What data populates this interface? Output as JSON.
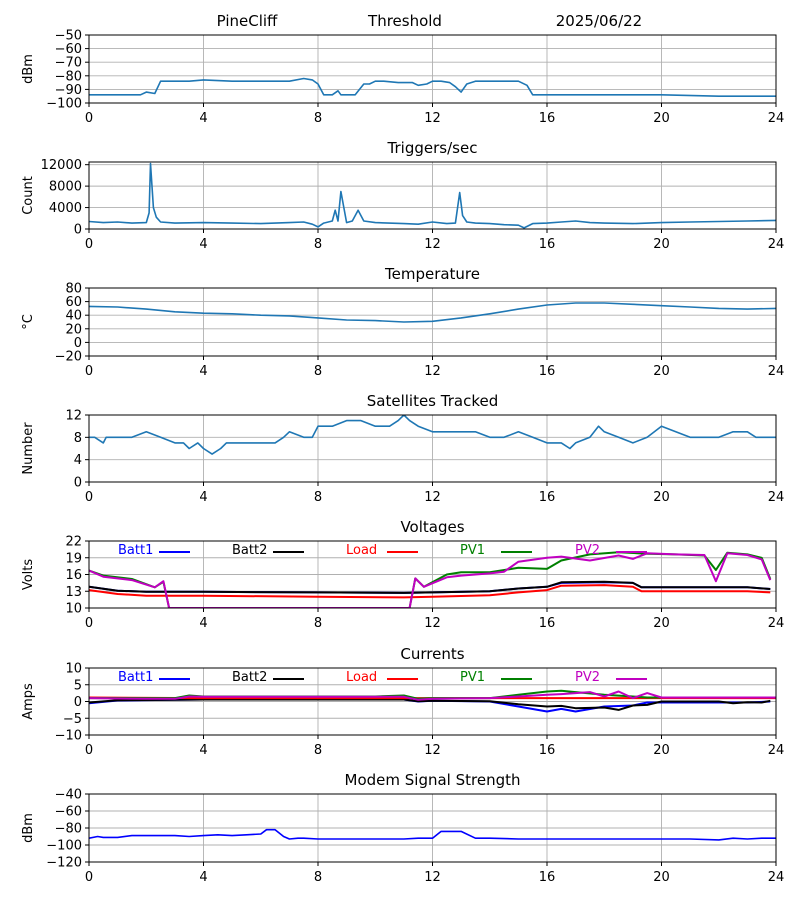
{
  "header": {
    "station": "PineCliff",
    "mode": "Threshold",
    "date": "2025/06/22"
  },
  "colors": {
    "series_default": "#1f77b4",
    "grid": "#b0b0b0",
    "batt1": "#0000ff",
    "batt2": "#000000",
    "load": "#ff0000",
    "pv1": "#008000",
    "pv2": "#c000c0",
    "modem": "#0000ff"
  },
  "chart_data": [
    {
      "type": "line",
      "title": "",
      "ylabel": "dBm",
      "ylim": [
        -100,
        -50
      ],
      "yticks": [
        -50,
        -60,
        -70,
        -80,
        -90,
        -100
      ],
      "xlim": [
        0,
        24
      ],
      "xticks": [
        0,
        4,
        8,
        12,
        16,
        20,
        24
      ],
      "series": [
        {
          "color": "#1f77b4",
          "x": [
            0,
            1.8,
            2.0,
            2.3,
            2.5,
            3.5,
            4,
            5,
            6,
            7,
            7.5,
            7.8,
            8.0,
            8.2,
            8.5,
            8.7,
            8.8,
            9.0,
            9.3,
            9.6,
            9.8,
            10.0,
            10.3,
            10.8,
            11.3,
            11.5,
            11.8,
            12.0,
            12.3,
            12.6,
            12.8,
            13.0,
            13.2,
            13.5,
            14.0,
            14.5,
            15.0,
            15.3,
            15.5,
            16,
            18,
            20,
            22,
            24
          ],
          "y": [
            -94,
            -94,
            -92,
            -93,
            -84,
            -84,
            -83,
            -84,
            -84,
            -84,
            -82,
            -83,
            -86,
            -94,
            -94,
            -91,
            -94,
            -94,
            -94,
            -86,
            -86,
            -84,
            -84,
            -85,
            -85,
            -87,
            -86,
            -84,
            -84,
            -85,
            -88,
            -92,
            -86,
            -84,
            -84,
            -84,
            -84,
            -87,
            -94,
            -94,
            -94,
            -94,
            -95,
            -95
          ]
        }
      ]
    },
    {
      "type": "line",
      "title": "Triggers/sec",
      "ylabel": "Count",
      "ylim": [
        0,
        12500
      ],
      "yticks": [
        0,
        4000,
        8000,
        12000
      ],
      "xlim": [
        0,
        24
      ],
      "xticks": [
        0,
        4,
        8,
        12,
        16,
        20,
        24
      ],
      "series": [
        {
          "color": "#1f77b4",
          "x": [
            0,
            0.5,
            1,
            1.5,
            2.0,
            2.1,
            2.15,
            2.25,
            2.35,
            2.5,
            3,
            4,
            5,
            6,
            7,
            7.5,
            7.8,
            8.0,
            8.2,
            8.5,
            8.6,
            8.7,
            8.8,
            9.0,
            9.2,
            9.4,
            9.6,
            10,
            11,
            11.5,
            12,
            12.5,
            12.8,
            12.95,
            13.05,
            13.2,
            13.5,
            14,
            14.5,
            15,
            15.2,
            15.5,
            16,
            16.5,
            17,
            17.5,
            18,
            19,
            20,
            21,
            22,
            23,
            24
          ],
          "y": [
            1400,
            1200,
            1300,
            1100,
            1200,
            3000,
            12200,
            4000,
            2200,
            1300,
            1100,
            1200,
            1100,
            1000,
            1200,
            1300,
            900,
            400,
            1100,
            1500,
            3500,
            1500,
            7000,
            1200,
            1500,
            3500,
            1500,
            1200,
            1000,
            900,
            1300,
            1000,
            1100,
            6800,
            2500,
            1300,
            1100,
            1000,
            800,
            700,
            200,
            1000,
            1100,
            1300,
            1500,
            1200,
            1100,
            1000,
            1200,
            1300,
            1400,
            1500,
            1600
          ]
        }
      ]
    },
    {
      "type": "line",
      "title": "Temperature",
      "ylabel": "°C",
      "ylim": [
        -20,
        80
      ],
      "yticks": [
        -20,
        0,
        20,
        40,
        60,
        80
      ],
      "xlim": [
        0,
        24
      ],
      "xticks": [
        0,
        4,
        8,
        12,
        16,
        20,
        24
      ],
      "series": [
        {
          "color": "#1f77b4",
          "x": [
            0,
            1,
            2,
            3,
            4,
            5,
            6,
            7,
            8,
            9,
            10,
            11,
            12,
            13,
            14,
            15,
            16,
            17,
            18,
            19,
            20,
            21,
            22,
            23,
            24
          ],
          "y": [
            53,
            52,
            49,
            45,
            43,
            42,
            40,
            39,
            36,
            33,
            32,
            30,
            31,
            36,
            42,
            49,
            55,
            58,
            58,
            56,
            54,
            52,
            50,
            49,
            50
          ]
        }
      ]
    },
    {
      "type": "line",
      "title": "Satellites Tracked",
      "ylabel": "Number",
      "ylim": [
        0,
        12
      ],
      "yticks": [
        0,
        4,
        8,
        12
      ],
      "xlim": [
        0,
        24
      ],
      "xticks": [
        0,
        4,
        8,
        12,
        16,
        20,
        24
      ],
      "series": [
        {
          "color": "#1f77b4",
          "x": [
            0,
            0.2,
            0.5,
            0.6,
            1.0,
            1.5,
            2.0,
            2.5,
            3.0,
            3.3,
            3.5,
            3.8,
            4.0,
            4.3,
            4.6,
            4.8,
            5.0,
            5.5,
            6.0,
            6.5,
            6.8,
            7.0,
            7.5,
            7.8,
            8.0,
            8.5,
            9.0,
            9.5,
            10.0,
            10.5,
            10.8,
            11.0,
            11.2,
            11.5,
            12.0,
            12.5,
            13.0,
            13.5,
            14.0,
            14.5,
            15.0,
            15.5,
            16.0,
            16.5,
            16.8,
            17.0,
            17.5,
            17.8,
            18.0,
            18.5,
            19.0,
            19.5,
            20.0,
            20.5,
            21.0,
            21.5,
            22.0,
            22.5,
            23.0,
            23.3,
            23.6,
            24
          ],
          "y": [
            8,
            8,
            7,
            8,
            8,
            8,
            9,
            8,
            7,
            7,
            6,
            7,
            6,
            5,
            6,
            7,
            7,
            7,
            7,
            7,
            8,
            9,
            8,
            8,
            10,
            10,
            11,
            11,
            10,
            10,
            11,
            12,
            11,
            10,
            9,
            9,
            9,
            9,
            8,
            8,
            9,
            8,
            7,
            7,
            6,
            7,
            8,
            10,
            9,
            8,
            7,
            8,
            10,
            9,
            8,
            8,
            8,
            9,
            9,
            8,
            8,
            8
          ]
        }
      ]
    },
    {
      "type": "line",
      "title": "Voltages",
      "ylabel": "Volts",
      "ylim": [
        10,
        22
      ],
      "yticks": [
        10,
        13,
        16,
        19,
        22
      ],
      "xlim": [
        0,
        24
      ],
      "xticks": [
        0,
        4,
        8,
        12,
        16,
        20,
        24
      ],
      "legend": [
        "Batt1",
        "Batt2",
        "Load",
        "PV1",
        "PV2"
      ],
      "series": [
        {
          "name": "Batt1",
          "color": "#0000ff",
          "x": [
            0,
            1,
            2,
            4,
            8,
            11,
            12,
            14,
            15,
            16,
            16.5,
            18,
            19,
            19.3,
            20,
            22,
            23,
            23.8
          ],
          "y": [
            13.8,
            13.1,
            12.9,
            12.9,
            12.8,
            12.7,
            12.8,
            13.0,
            13.5,
            13.8,
            14.5,
            14.6,
            14.5,
            13.7,
            13.7,
            13.7,
            13.7,
            13.4
          ]
        },
        {
          "name": "Batt2",
          "color": "#000000",
          "x": [
            0,
            1,
            2,
            4,
            8,
            11,
            12,
            14,
            15,
            16,
            16.5,
            18,
            19,
            19.3,
            20,
            22,
            23,
            23.8
          ],
          "y": [
            13.8,
            13.1,
            12.9,
            12.9,
            12.8,
            12.7,
            12.8,
            13.0,
            13.5,
            13.8,
            14.6,
            14.7,
            14.5,
            13.7,
            13.7,
            13.7,
            13.7,
            13.4
          ]
        },
        {
          "name": "Load",
          "color": "#ff0000",
          "x": [
            0,
            1,
            2,
            4,
            8,
            11,
            12,
            14,
            15,
            16,
            16.5,
            18,
            19,
            19.3,
            20,
            22,
            23,
            23.8
          ],
          "y": [
            13.2,
            12.5,
            12.2,
            12.2,
            12.0,
            11.9,
            12.0,
            12.3,
            12.8,
            13.2,
            14.0,
            14.1,
            13.8,
            13.0,
            13.0,
            13.0,
            13.0,
            12.8
          ]
        },
        {
          "name": "PV1",
          "color": "#008000",
          "x": [
            0,
            0.5,
            1.5,
            2.3,
            2.6,
            2.8,
            11.2,
            11.4,
            11.7,
            12.5,
            13,
            14,
            15,
            16,
            16.5,
            17.5,
            18.5,
            19.5,
            20.5,
            21.5,
            21.9,
            22.3,
            23,
            23.5,
            23.8
          ],
          "y": [
            16.7,
            15.8,
            15.2,
            13.7,
            14.7,
            10,
            10,
            15.3,
            13.8,
            16,
            16.4,
            16.4,
            17.2,
            17.0,
            18.5,
            19.6,
            20.0,
            19.7,
            19.6,
            19.4,
            16.8,
            19.9,
            19.6,
            19.0,
            15.2
          ]
        },
        {
          "name": "PV2",
          "color": "#c000c0",
          "x": [
            0,
            0.5,
            1.5,
            2.3,
            2.6,
            2.8,
            11.2,
            11.4,
            11.7,
            12.5,
            13,
            14,
            14.5,
            15,
            16,
            16.5,
            17.5,
            18.5,
            19,
            19.5,
            20.5,
            21.5,
            21.9,
            22.3,
            23,
            23.5,
            23.8
          ],
          "y": [
            16.7,
            15.6,
            15.0,
            13.7,
            14.8,
            10,
            10,
            15.3,
            13.8,
            15.5,
            15.8,
            16.2,
            16.5,
            18.3,
            19.0,
            19.2,
            18.5,
            19.4,
            18.8,
            19.8,
            19.6,
            19.5,
            14.8,
            19.8,
            19.5,
            18.7,
            15.0
          ]
        }
      ]
    },
    {
      "type": "line",
      "title": "Currents",
      "ylabel": "Amps",
      "ylim": [
        -10,
        10
      ],
      "yticks": [
        -10,
        -5,
        0,
        5,
        10
      ],
      "xlim": [
        0,
        24
      ],
      "xticks": [
        0,
        4,
        8,
        12,
        16,
        20,
        24
      ],
      "legend": [
        "Batt1",
        "Batt2",
        "Load",
        "PV1",
        "PV2"
      ],
      "series": [
        {
          "name": "Batt1",
          "color": "#0000ff",
          "x": [
            0,
            1,
            3,
            4,
            8,
            11,
            11.5,
            12,
            14,
            15,
            16,
            16.5,
            17,
            18,
            19,
            19.5,
            20,
            22,
            23,
            23.8
          ],
          "y": [
            -0.5,
            0.3,
            0.5,
            0.6,
            0.6,
            0.6,
            0.0,
            0.2,
            0.0,
            -1.5,
            -3.0,
            -2.2,
            -3.0,
            -1.5,
            -1.2,
            -0.3,
            -0.3,
            -0.3,
            -0.3,
            0.0
          ]
        },
        {
          "name": "Batt2",
          "color": "#000000",
          "x": [
            0,
            1,
            3,
            4,
            8,
            11,
            11.5,
            12,
            14,
            15,
            16,
            16.5,
            17,
            18,
            18.5,
            19,
            19.5,
            20,
            22,
            22.5,
            23,
            23.5,
            23.8
          ],
          "y": [
            -0.3,
            0.4,
            0.5,
            0.6,
            0.6,
            0.6,
            0.1,
            0.2,
            0.1,
            -0.8,
            -1.5,
            -1.3,
            -2.0,
            -1.8,
            -2.5,
            -1.2,
            -1.0,
            0.0,
            0.0,
            -0.5,
            -0.2,
            -0.3,
            0.2
          ]
        },
        {
          "name": "Load",
          "color": "#ff0000",
          "x": [
            0,
            4,
            8,
            12,
            16,
            20,
            24
          ],
          "y": [
            1.2,
            1.0,
            1.0,
            1.0,
            1.0,
            1.0,
            1.0
          ]
        },
        {
          "name": "PV1",
          "color": "#008000",
          "x": [
            0,
            2,
            3,
            3.5,
            4,
            8,
            10,
            11,
            11.5,
            12,
            14,
            15,
            16,
            16.5,
            17,
            18,
            19,
            19.5,
            20,
            24
          ],
          "y": [
            1.0,
            1.0,
            1.0,
            1.8,
            1.5,
            1.5,
            1.5,
            1.8,
            0.8,
            1.0,
            1.0,
            2.0,
            3.0,
            3.2,
            2.8,
            2.0,
            1.5,
            1.2,
            1.2,
            1.2
          ]
        },
        {
          "name": "PV2",
          "color": "#c000c0",
          "x": [
            0,
            2,
            3,
            3.5,
            4,
            8,
            10,
            11,
            11.5,
            12,
            14,
            15,
            16,
            16.5,
            17,
            17.5,
            18,
            18.5,
            19,
            19.5,
            20,
            24
          ],
          "y": [
            1.0,
            0.8,
            0.8,
            1.5,
            1.4,
            1.4,
            1.4,
            1.4,
            0.5,
            0.8,
            1.0,
            1.5,
            2.0,
            2.2,
            2.5,
            2.8,
            1.5,
            3.0,
            1.0,
            2.5,
            1.2,
            1.2
          ]
        }
      ]
    },
    {
      "type": "line",
      "title": "Modem Signal Strength",
      "ylabel": "dBm",
      "ylim": [
        -120,
        -40
      ],
      "yticks": [
        -40,
        -60,
        -80,
        -100,
        -120
      ],
      "xlim": [
        0,
        24
      ],
      "xticks": [
        0,
        4,
        8,
        12,
        16,
        20,
        24
      ],
      "series": [
        {
          "color": "#0000ff",
          "x": [
            0,
            0.3,
            0.5,
            1,
            1.5,
            2,
            3,
            3.5,
            4,
            4.5,
            5,
            5.5,
            6,
            6.2,
            6.5,
            6.8,
            7,
            7.3,
            7.5,
            8,
            9,
            10,
            11,
            11.5,
            12,
            12.3,
            12.5,
            13,
            13.5,
            14,
            15,
            16,
            17,
            18,
            19,
            20,
            21,
            22,
            22.5,
            23,
            23.5,
            24
          ],
          "y": [
            -92,
            -90,
            -91,
            -91,
            -89,
            -89,
            -89,
            -90,
            -89,
            -88,
            -89,
            -88,
            -87,
            -82,
            -82,
            -90,
            -93,
            -92,
            -92,
            -93,
            -93,
            -93,
            -93,
            -92,
            -92,
            -84,
            -84,
            -84,
            -92,
            -92,
            -93,
            -93,
            -93,
            -93,
            -93,
            -93,
            -93,
            -94,
            -92,
            -93,
            -92,
            -92
          ]
        }
      ]
    }
  ]
}
